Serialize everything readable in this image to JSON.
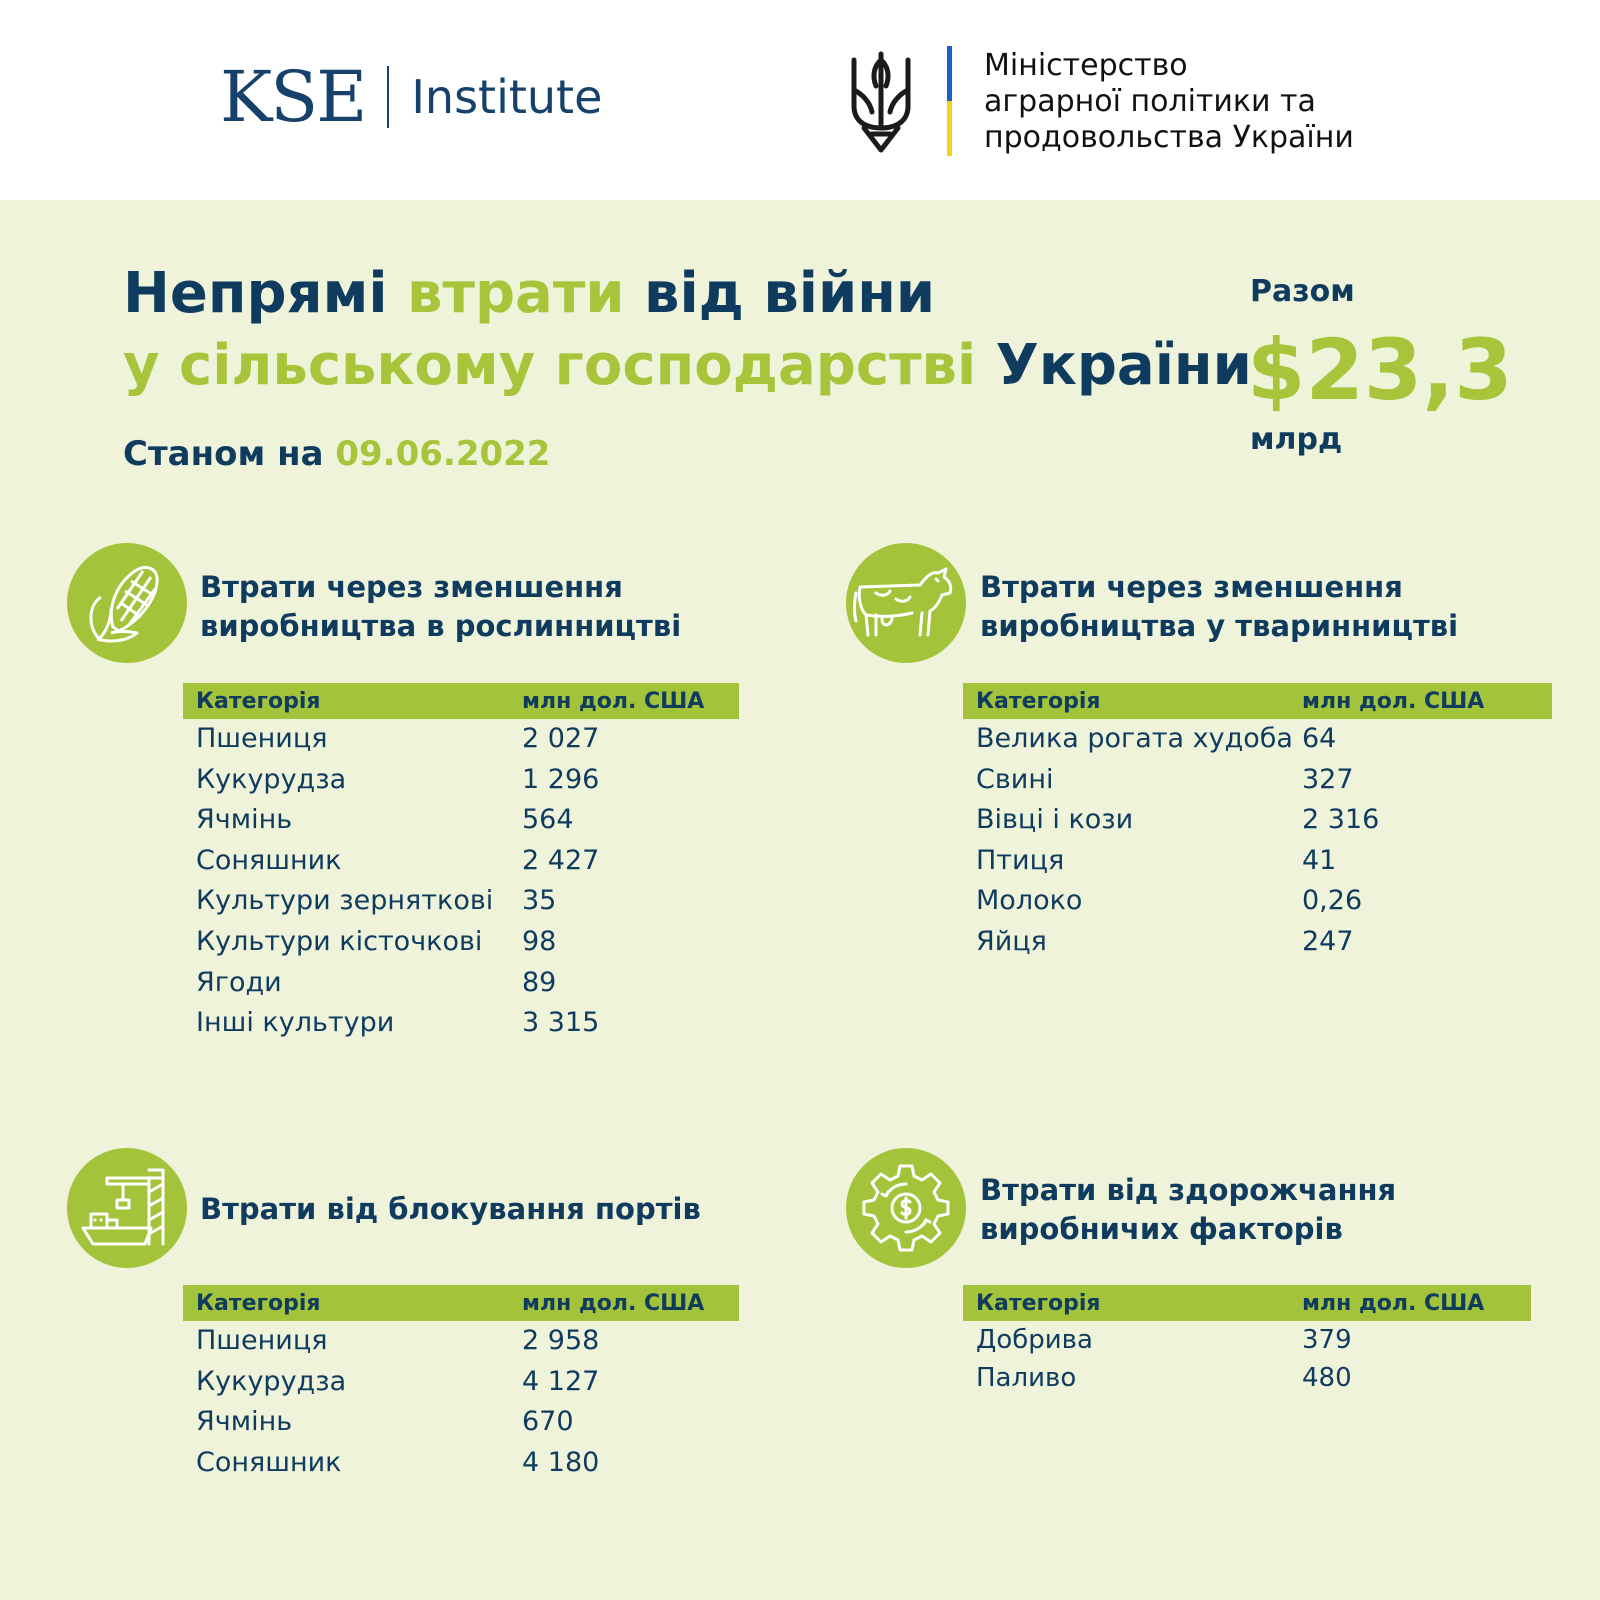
{
  "header": {
    "kse_mark": "KSE",
    "kse_institute": "Institute",
    "ministry_lines": [
      "Міністерство",
      "аграрної політики та",
      "продовольства України"
    ]
  },
  "title": {
    "line1": {
      "a": "Непрямі ",
      "b": "втрати",
      "c": " від війни"
    },
    "line2": {
      "a": "у сільському господарстві ",
      "b": "України"
    }
  },
  "date": {
    "label": "Станом на ",
    "value": "09.06.2022"
  },
  "total": {
    "label": "Разом",
    "value": "$23,3",
    "unit": "млрд"
  },
  "colors": {
    "accent": "#a3c33a",
    "text": "#0f3b5f",
    "background": "#eef3da"
  },
  "sections": [
    {
      "icon": "corn-icon",
      "title_lines": [
        "Втрати через зменшення",
        "виробництва в рослинництві"
      ],
      "headers": [
        "Категорія",
        "млн дол. США"
      ],
      "rows": [
        [
          "Пшениця",
          "2 027"
        ],
        [
          "Кукурудза",
          "1 296"
        ],
        [
          "Ячмінь",
          "564"
        ],
        [
          "Соняшник",
          "2 427"
        ],
        [
          "Культури зерняткові",
          "35"
        ],
        [
          "Культури кісточкові",
          "98"
        ],
        [
          "Ягоди",
          "89"
        ],
        [
          "Інші культури",
          "3 315"
        ]
      ]
    },
    {
      "icon": "cow-icon",
      "title_lines": [
        "Втрати через зменшення",
        "виробництва у тваринництві"
      ],
      "headers": [
        "Категорія",
        "млн дол. США"
      ],
      "rows": [
        [
          "Велика рогата худоба",
          "64"
        ],
        [
          "Свині",
          "327"
        ],
        [
          "Вівці і кози",
          "2 316"
        ],
        [
          "Птиця",
          "41"
        ],
        [
          "Молоко",
          "0,26"
        ],
        [
          "Яйця",
          "247"
        ]
      ]
    },
    {
      "icon": "port-crane-icon",
      "title_lines": [
        "Втрати від блокування портів"
      ],
      "headers": [
        "Категорія",
        "млн дол. США"
      ],
      "rows": [
        [
          "Пшениця",
          "2 958"
        ],
        [
          "Кукурудза",
          "4 127"
        ],
        [
          "Ячмінь",
          "670"
        ],
        [
          "Соняшник",
          "4 180"
        ]
      ]
    },
    {
      "icon": "gear-dollar-icon",
      "title_lines": [
        "Втрати від здорожчання",
        "виробничих факторів"
      ],
      "headers": [
        "Категорія",
        "млн дол. США"
      ],
      "rows": [
        [
          "Добрива",
          "379"
        ],
        [
          "Паливо",
          "480"
        ]
      ]
    }
  ]
}
